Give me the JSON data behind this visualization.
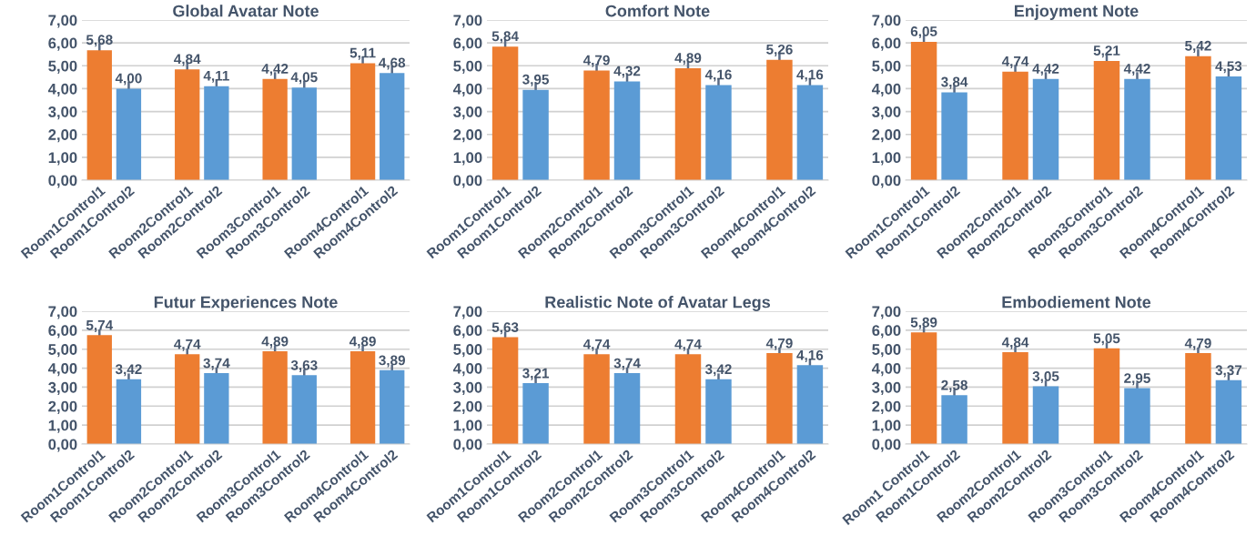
{
  "chart_data": [
    {
      "type": "bar",
      "title": "Global Avatar Note",
      "categories": [
        "Room1Control1",
        "Room1Control2",
        null,
        "Room2Control1",
        "Room2Control2",
        null,
        "Room3Control1",
        "Room3Control2",
        null,
        "Room4Control1",
        "Room4Control2"
      ],
      "values": [
        5.68,
        4.0,
        null,
        4.84,
        4.11,
        null,
        4.42,
        4.05,
        null,
        5.11,
        4.68
      ],
      "value_labels": [
        "5,68",
        "4,00",
        null,
        "4,84",
        "4,11",
        null,
        "4,42",
        "4,05",
        null,
        "5,11",
        "4,68"
      ],
      "errors": [
        0.3,
        0.3,
        null,
        0.3,
        0.3,
        null,
        0.3,
        0.3,
        null,
        0.3,
        0.3
      ],
      "colors": [
        "#ed7d31",
        "#5b9bd5",
        null,
        "#ed7d31",
        "#5b9bd5",
        null,
        "#ed7d31",
        "#5b9bd5",
        null,
        "#ed7d31",
        "#5b9bd5"
      ],
      "ylim": [
        0,
        7
      ],
      "yticks": [
        {
          "value": 0,
          "label": "0,00"
        },
        {
          "value": 1,
          "label": "1,00"
        },
        {
          "value": 2,
          "label": "2,00"
        },
        {
          "value": 3,
          "label": "3,00"
        },
        {
          "value": 4,
          "label": "4,00"
        },
        {
          "value": 5,
          "label": "5,00"
        },
        {
          "value": 6,
          "label": "6,00"
        },
        {
          "value": 7,
          "label": "7,00"
        }
      ],
      "grid": "y"
    },
    {
      "type": "bar",
      "title": "Comfort Note",
      "categories": [
        "Room1Control1",
        "Room1Control2",
        null,
        "Room2Control1",
        "Room2Control2",
        null,
        "Room3Control1",
        "Room3Control2",
        null,
        "Room4Control1",
        "Room4Control2"
      ],
      "values": [
        5.84,
        3.95,
        null,
        4.79,
        4.32,
        null,
        4.89,
        4.16,
        null,
        5.26,
        4.16
      ],
      "value_labels": [
        "5,84",
        "3,95",
        null,
        "4,79",
        "4,32",
        null,
        "4,89",
        "4,16",
        null,
        "5,26",
        "4,16"
      ],
      "errors": [
        0.3,
        0.3,
        null,
        0.3,
        0.3,
        null,
        0.3,
        0.3,
        null,
        0.3,
        0.3
      ],
      "colors": [
        "#ed7d31",
        "#5b9bd5",
        null,
        "#ed7d31",
        "#5b9bd5",
        null,
        "#ed7d31",
        "#5b9bd5",
        null,
        "#ed7d31",
        "#5b9bd5"
      ],
      "ylim": [
        0,
        7
      ],
      "yticks": [
        {
          "value": 0,
          "label": "0,00"
        },
        {
          "value": 1,
          "label": "1,00"
        },
        {
          "value": 2,
          "label": "2,00"
        },
        {
          "value": 3,
          "label": "3,00"
        },
        {
          "value": 4,
          "label": "4,00"
        },
        {
          "value": 5,
          "label": "5,00"
        },
        {
          "value": 6,
          "label": "6,00"
        },
        {
          "value": 7,
          "label": "7,00"
        }
      ],
      "grid": "y"
    },
    {
      "type": "bar",
      "title": "Enjoyment Note",
      "categories": [
        "Room1Control1",
        "Room1Control2",
        null,
        "Room2Control1",
        "Room2Control2",
        null,
        "Room3Control1",
        "Room3Control2",
        null,
        "Room4Control1",
        "Room4Control2"
      ],
      "values": [
        6.05,
        3.84,
        null,
        4.74,
        4.42,
        null,
        5.21,
        4.42,
        null,
        5.42,
        4.53
      ],
      "value_labels": [
        "6,05",
        "3,84",
        null,
        "4,74",
        "4,42",
        null,
        "5,21",
        "4,42",
        null,
        "5,42",
        "4,53"
      ],
      "errors": [
        0.3,
        0.3,
        null,
        0.3,
        0.3,
        null,
        0.3,
        0.3,
        null,
        0.3,
        0.3
      ],
      "colors": [
        "#ed7d31",
        "#5b9bd5",
        null,
        "#ed7d31",
        "#5b9bd5",
        null,
        "#ed7d31",
        "#5b9bd5",
        null,
        "#ed7d31",
        "#5b9bd5"
      ],
      "ylim": [
        0,
        7
      ],
      "yticks": [
        {
          "value": 0,
          "label": "0,00"
        },
        {
          "value": 1,
          "label": "1,00"
        },
        {
          "value": 2,
          "label": "2,00"
        },
        {
          "value": 3,
          "label": "3,00"
        },
        {
          "value": 4,
          "label": "4,00"
        },
        {
          "value": 5,
          "label": "5,00"
        },
        {
          "value": 6,
          "label": "6,00"
        },
        {
          "value": 7,
          "label": "7,00"
        }
      ],
      "grid": "y"
    },
    {
      "type": "bar",
      "title": "Futur Experiences Note",
      "categories": [
        "Room1Control1",
        "Room1Control2",
        null,
        "Room2Control1",
        "Room2Control2",
        null,
        "Room3Control1",
        "Room3Control2",
        null,
        "Room4Control1",
        "Room4Control2"
      ],
      "values": [
        5.74,
        3.42,
        null,
        4.74,
        3.74,
        null,
        4.89,
        3.63,
        null,
        4.89,
        3.89
      ],
      "value_labels": [
        "5,74",
        "3,42",
        null,
        "4,74",
        "3,74",
        null,
        "4,89",
        "3,63",
        null,
        "4,89",
        "3,89"
      ],
      "errors": [
        0.3,
        0.3,
        null,
        0.3,
        0.3,
        null,
        0.3,
        0.3,
        null,
        0.3,
        0.3
      ],
      "colors": [
        "#ed7d31",
        "#5b9bd5",
        null,
        "#ed7d31",
        "#5b9bd5",
        null,
        "#ed7d31",
        "#5b9bd5",
        null,
        "#ed7d31",
        "#5b9bd5"
      ],
      "ylim": [
        0,
        7
      ],
      "yticks": [
        {
          "value": 0,
          "label": "0,00"
        },
        {
          "value": 1,
          "label": "1,00"
        },
        {
          "value": 2,
          "label": "2,00"
        },
        {
          "value": 3,
          "label": "3,00"
        },
        {
          "value": 4,
          "label": "4,00"
        },
        {
          "value": 5,
          "label": "5,00"
        },
        {
          "value": 6,
          "label": "6,00"
        },
        {
          "value": 7,
          "label": "7,00"
        }
      ],
      "grid": "y"
    },
    {
      "type": "bar",
      "title": "Realistic Note of Avatar Legs",
      "categories": [
        "Room1Control1",
        "Room1Control2",
        null,
        "Room2Control1",
        "Room2Control2",
        null,
        "Room3Control1",
        "Room3Control2",
        null,
        "Room4Control1",
        "Room4Control2"
      ],
      "values": [
        5.63,
        3.21,
        null,
        4.74,
        3.74,
        null,
        4.74,
        3.42,
        null,
        4.79,
        4.16
      ],
      "value_labels": [
        "5,63",
        "3,21",
        null,
        "4,74",
        "3,74",
        null,
        "4,74",
        "3,42",
        null,
        "4,79",
        "4,16"
      ],
      "errors": [
        0.3,
        0.3,
        null,
        0.3,
        0.3,
        null,
        0.3,
        0.3,
        null,
        0.3,
        0.3
      ],
      "colors": [
        "#ed7d31",
        "#5b9bd5",
        null,
        "#ed7d31",
        "#5b9bd5",
        null,
        "#ed7d31",
        "#5b9bd5",
        null,
        "#ed7d31",
        "#5b9bd5"
      ],
      "ylim": [
        0,
        7
      ],
      "yticks": [
        {
          "value": 0,
          "label": "0,00"
        },
        {
          "value": 1,
          "label": "1,00"
        },
        {
          "value": 2,
          "label": "2,00"
        },
        {
          "value": 3,
          "label": "3,00"
        },
        {
          "value": 4,
          "label": "4,00"
        },
        {
          "value": 5,
          "label": "5,00"
        },
        {
          "value": 6,
          "label": "6,00"
        },
        {
          "value": 7,
          "label": "7,00"
        }
      ],
      "grid": "y"
    },
    {
      "type": "bar",
      "title": "Embodiement Note",
      "categories": [
        "Room1 Control1",
        "Room1Control2",
        null,
        "Room2Control1",
        "Room2Control2",
        null,
        "Room3Control1",
        "Room3Control2",
        null,
        "Room4Control1",
        "Room4Control2"
      ],
      "values": [
        5.89,
        2.58,
        null,
        4.84,
        3.05,
        null,
        5.05,
        2.95,
        null,
        4.79,
        3.37
      ],
      "value_labels": [
        "5,89",
        "2,58",
        null,
        "4,84",
        "3,05",
        null,
        "5,05",
        "2,95",
        null,
        "4,79",
        "3,37"
      ],
      "errors": [
        0.3,
        0.3,
        null,
        0.3,
        0.3,
        null,
        0.3,
        0.3,
        null,
        0.3,
        0.3
      ],
      "colors": [
        "#ed7d31",
        "#5b9bd5",
        null,
        "#ed7d31",
        "#5b9bd5",
        null,
        "#ed7d31",
        "#5b9bd5",
        null,
        "#ed7d31",
        "#5b9bd5"
      ],
      "ylim": [
        0,
        7
      ],
      "yticks": [
        {
          "value": 0,
          "label": "0,00"
        },
        {
          "value": 1,
          "label": "1,00"
        },
        {
          "value": 2,
          "label": "2,00"
        },
        {
          "value": 3,
          "label": "3,00"
        },
        {
          "value": 4,
          "label": "4,00"
        },
        {
          "value": 5,
          "label": "5,00"
        },
        {
          "value": 6,
          "label": "6,00"
        },
        {
          "value": 7,
          "label": "7,00"
        }
      ],
      "grid": "y"
    }
  ]
}
